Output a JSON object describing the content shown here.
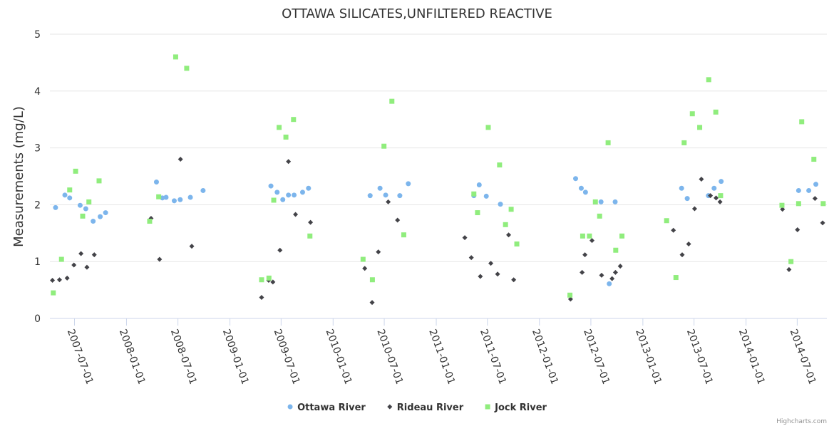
{
  "chart_data": {
    "type": "scatter",
    "title": "OTTAWA SILICATES,UNFILTERED REACTIVE",
    "ylabel": "Measurements (mg/L)",
    "xlabel": "",
    "ylim": [
      0,
      5
    ],
    "yticks": [
      "0",
      "1",
      "2",
      "3",
      "4",
      "5"
    ],
    "xlim": [
      "2007-04-05",
      "2014-10-14"
    ],
    "xticks": [
      "2007-07-01",
      "2008-01-01",
      "2008-07-01",
      "2009-01-01",
      "2009-07-01",
      "2010-01-01",
      "2010-07-01",
      "2011-01-01",
      "2011-07-01",
      "2012-01-01",
      "2012-07-01",
      "2013-01-01",
      "2013-07-01",
      "2014-01-01",
      "2014-07-01"
    ],
    "grid": "horizontal",
    "legend_position": "bottom-center",
    "credit": "Highcharts.com",
    "series": [
      {
        "name": "Ottawa River",
        "color": "#7cb5ec",
        "marker": "circle",
        "points": [
          [
            "2007-04-25",
            1.95
          ],
          [
            "2007-05-28",
            2.17
          ],
          [
            "2007-06-14",
            2.12
          ],
          [
            "2007-07-21",
            1.99
          ],
          [
            "2007-08-10",
            1.93
          ],
          [
            "2007-09-05",
            1.71
          ],
          [
            "2007-09-30",
            1.79
          ],
          [
            "2007-10-19",
            1.86
          ],
          [
            "2008-04-16",
            2.4
          ],
          [
            "2008-05-07",
            2.12
          ],
          [
            "2008-05-20",
            2.13
          ],
          [
            "2008-06-18",
            2.07
          ],
          [
            "2008-07-09",
            2.09
          ],
          [
            "2008-08-14",
            2.13
          ],
          [
            "2008-09-28",
            2.25
          ],
          [
            "2009-05-26",
            2.33
          ],
          [
            "2009-06-17",
            2.22
          ],
          [
            "2009-07-07",
            2.09
          ],
          [
            "2009-07-27",
            2.17
          ],
          [
            "2009-08-16",
            2.17
          ],
          [
            "2009-09-15",
            2.22
          ],
          [
            "2009-10-06",
            2.29
          ],
          [
            "2010-05-12",
            2.16
          ],
          [
            "2010-06-16",
            2.29
          ],
          [
            "2010-07-06",
            2.17
          ],
          [
            "2010-08-25",
            2.16
          ],
          [
            "2010-09-24",
            2.37
          ],
          [
            "2011-05-14",
            2.16
          ],
          [
            "2011-06-02",
            2.35
          ],
          [
            "2011-06-27",
            2.15
          ],
          [
            "2011-08-16",
            2.01
          ],
          [
            "2012-05-08",
            2.46
          ],
          [
            "2012-05-28",
            2.29
          ],
          [
            "2012-06-12",
            2.22
          ],
          [
            "2012-08-06",
            2.05
          ],
          [
            "2012-09-04",
            0.61
          ],
          [
            "2012-09-25",
            2.05
          ],
          [
            "2013-05-18",
            2.29
          ],
          [
            "2013-06-07",
            2.11
          ],
          [
            "2013-08-21",
            2.16
          ],
          [
            "2013-09-10",
            2.29
          ],
          [
            "2013-10-05",
            2.41
          ],
          [
            "2014-07-06",
            2.25
          ],
          [
            "2014-08-11",
            2.25
          ],
          [
            "2014-09-05",
            2.36
          ]
        ]
      },
      {
        "name": "Rideau River",
        "color": "#434348",
        "marker": "diamond",
        "points": [
          [
            "2007-04-14",
            0.67
          ],
          [
            "2007-05-09",
            0.68
          ],
          [
            "2007-06-05",
            0.71
          ],
          [
            "2007-06-29",
            0.94
          ],
          [
            "2007-07-24",
            1.14
          ],
          [
            "2007-08-14",
            0.9
          ],
          [
            "2007-09-09",
            1.12
          ],
          [
            "2008-03-28",
            1.76
          ],
          [
            "2008-04-27",
            1.04
          ],
          [
            "2008-07-10",
            2.8
          ],
          [
            "2008-08-19",
            1.27
          ],
          [
            "2009-04-23",
            0.37
          ],
          [
            "2009-05-18",
            0.67
          ],
          [
            "2009-06-02",
            0.64
          ],
          [
            "2009-06-27",
            1.2
          ],
          [
            "2009-07-27",
            2.76
          ],
          [
            "2009-08-21",
            1.83
          ],
          [
            "2009-10-13",
            1.69
          ],
          [
            "2010-04-23",
            0.88
          ],
          [
            "2010-05-19",
            0.28
          ],
          [
            "2010-06-10",
            1.17
          ],
          [
            "2010-07-15",
            2.05
          ],
          [
            "2010-08-17",
            1.73
          ],
          [
            "2011-04-12",
            1.42
          ],
          [
            "2011-05-05",
            1.07
          ],
          [
            "2011-06-06",
            0.74
          ],
          [
            "2011-07-13",
            0.97
          ],
          [
            "2011-08-06",
            0.78
          ],
          [
            "2011-09-14",
            1.47
          ],
          [
            "2011-10-02",
            0.68
          ],
          [
            "2012-04-20",
            0.34
          ],
          [
            "2012-05-31",
            0.81
          ],
          [
            "2012-06-10",
            1.12
          ],
          [
            "2012-07-05",
            1.37
          ],
          [
            "2012-08-08",
            0.76
          ],
          [
            "2012-09-14",
            0.7
          ],
          [
            "2012-09-26",
            0.81
          ],
          [
            "2012-10-13",
            0.92
          ],
          [
            "2013-04-19",
            1.55
          ],
          [
            "2013-05-20",
            1.12
          ],
          [
            "2013-06-12",
            1.31
          ],
          [
            "2013-07-03",
            1.93
          ],
          [
            "2013-07-27",
            2.45
          ],
          [
            "2013-08-28",
            2.16
          ],
          [
            "2013-09-17",
            2.12
          ],
          [
            "2013-10-01",
            2.05
          ],
          [
            "2014-05-10",
            1.92
          ],
          [
            "2014-06-02",
            0.86
          ],
          [
            "2014-07-02",
            1.56
          ],
          [
            "2014-09-02",
            2.11
          ],
          [
            "2014-09-29",
            1.68
          ]
        ]
      },
      {
        "name": "Jock River",
        "color": "#90ed7d",
        "marker": "square",
        "points": [
          [
            "2007-04-17",
            0.45
          ],
          [
            "2007-05-16",
            1.04
          ],
          [
            "2007-06-14",
            2.26
          ],
          [
            "2007-07-05",
            2.59
          ],
          [
            "2007-07-30",
            1.8
          ],
          [
            "2007-08-21",
            2.05
          ],
          [
            "2007-09-26",
            2.42
          ],
          [
            "2008-03-23",
            1.71
          ],
          [
            "2008-04-24",
            2.14
          ],
          [
            "2008-06-23",
            4.6
          ],
          [
            "2008-08-01",
            4.4
          ],
          [
            "2009-04-23",
            0.68
          ],
          [
            "2009-05-19",
            0.71
          ],
          [
            "2009-06-05",
            2.08
          ],
          [
            "2009-06-24",
            3.36
          ],
          [
            "2009-07-18",
            3.19
          ],
          [
            "2009-08-14",
            3.5
          ],
          [
            "2009-10-11",
            1.45
          ],
          [
            "2010-04-17",
            1.04
          ],
          [
            "2010-05-20",
            0.68
          ],
          [
            "2010-06-30",
            3.03
          ],
          [
            "2010-07-28",
            3.82
          ],
          [
            "2010-09-08",
            1.47
          ],
          [
            "2011-05-14",
            2.19
          ],
          [
            "2011-05-27",
            1.86
          ],
          [
            "2011-07-04",
            3.36
          ],
          [
            "2011-08-13",
            2.7
          ],
          [
            "2011-09-03",
            1.65
          ],
          [
            "2011-09-23",
            1.92
          ],
          [
            "2011-10-13",
            1.31
          ],
          [
            "2012-04-18",
            0.41
          ],
          [
            "2012-06-02",
            1.45
          ],
          [
            "2012-06-26",
            1.45
          ],
          [
            "2012-07-17",
            2.05
          ],
          [
            "2012-08-01",
            1.8
          ],
          [
            "2012-08-31",
            3.09
          ],
          [
            "2012-09-27",
            1.2
          ],
          [
            "2012-10-19",
            1.45
          ],
          [
            "2013-03-26",
            1.72
          ],
          [
            "2013-04-28",
            0.72
          ],
          [
            "2013-05-27",
            3.09
          ],
          [
            "2013-06-25",
            3.6
          ],
          [
            "2013-07-21",
            3.36
          ],
          [
            "2013-08-22",
            4.2
          ],
          [
            "2013-09-16",
            3.63
          ],
          [
            "2013-10-03",
            2.16
          ],
          [
            "2014-05-08",
            1.99
          ],
          [
            "2014-06-09",
            1.0
          ],
          [
            "2014-07-06",
            2.02
          ],
          [
            "2014-07-17",
            3.46
          ],
          [
            "2014-08-29",
            2.8
          ],
          [
            "2014-10-01",
            2.02
          ]
        ]
      }
    ]
  }
}
